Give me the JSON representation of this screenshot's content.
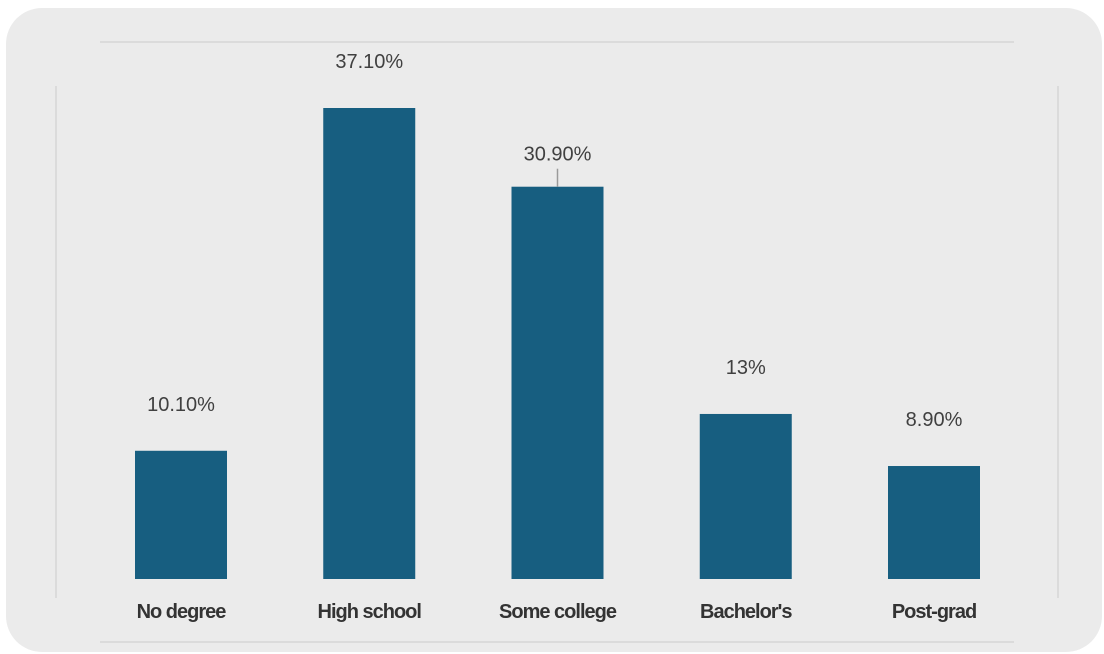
{
  "chart_data": {
    "type": "bar",
    "categories": [
      "No degree",
      "High school",
      "Some college",
      "Bachelor's",
      "Post-grad"
    ],
    "values": [
      10.1,
      37.1,
      30.9,
      13,
      8.9
    ],
    "data_labels": [
      "10.10%",
      "37.10%",
      "30.90%",
      "13%",
      "8.90%"
    ],
    "title": "",
    "xlabel": "",
    "ylabel": "",
    "ylim": [
      0,
      37.1
    ],
    "grid": false,
    "legend": "none",
    "colors": {
      "bar": "#175e80",
      "panel": "#ebebeb",
      "frame": "#d6d6d6"
    }
  }
}
